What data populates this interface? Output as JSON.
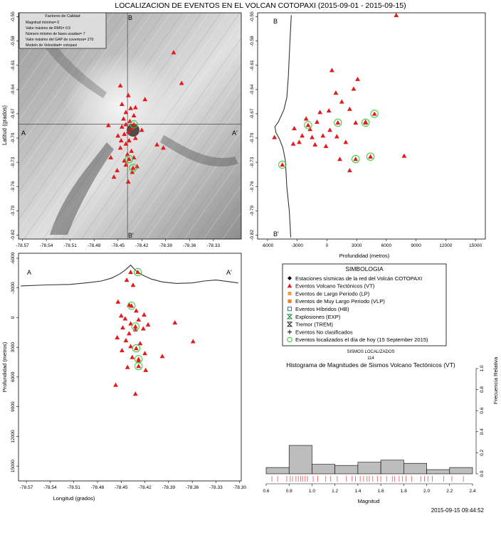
{
  "title": "LOCALIZACION DE EVENTOS EN EL VOLCAN COTOPAXI (2015-09-01 - 2015-09-15)",
  "timestamp": "2015-09-15 09:44:52",
  "quality": {
    "title": "Factores de Calidad",
    "lines": [
      "Magnitud mínima= 0",
      "Valor máximo de RMS= 0.5",
      "Número mínimo de fases usadas= 7",
      "Valor máximo del GAP de covertura= 270",
      "Modelo de Velocidad= cotopaxi"
    ]
  },
  "colors": {
    "vt": "#e41a1c",
    "today": "#33cc33",
    "profile": "#333333"
  },
  "legend": {
    "title": "SIMBOLOGIA",
    "items": [
      {
        "label": "Estaciones sísmicas de la red del Volcán COTOPAXI",
        "icon": "diamond-icon"
      },
      {
        "label": "Eventos Volcano Tectónicos (VT)",
        "icon": "triangle-icon"
      },
      {
        "label": "Eventos de Largo Periodo (LP)",
        "icon": "square-icon"
      },
      {
        "label": "Eventos de Muy Largo Periodo (VLP)",
        "icon": "square-icon"
      },
      {
        "label": "Eventos Híbridos (HB)",
        "icon": "square-outline-icon"
      },
      {
        "label": "Explosiones (EXP)",
        "icon": "hourglass-icon"
      },
      {
        "label": "Tremor (TREM)",
        "icon": "hourglass-outline-icon"
      },
      {
        "label": "Eventos No clasificados",
        "icon": "plus-icon"
      },
      {
        "label": "Eventos localizados el día de hoy (15 September 2015)",
        "icon": "circle-icon"
      }
    ]
  },
  "sismos": {
    "label": "SISMOS LOCALIZADOS",
    "count": "114"
  },
  "chart_data": [
    {
      "type": "scatter",
      "name": "map",
      "xlabel": "",
      "ylabel": "Latitud (grados)",
      "xlim": [
        -78.575,
        -78.295
      ],
      "ylim": [
        -0.825,
        -0.545
      ],
      "xticks": [
        "-78.57",
        "-78.54",
        "-78.51",
        "-78.48",
        "-78.45",
        "-78.42",
        "-78.39",
        "-78.36",
        "-78.33"
      ],
      "xtick_values": [
        -78.57,
        -78.54,
        -78.51,
        -78.48,
        -78.45,
        -78.42,
        -78.39,
        -78.36,
        -78.33
      ],
      "yticks": [
        "-0.55",
        "-0.58",
        "-0.61",
        "-0.64",
        "-0.67",
        "-0.70",
        "-0.73",
        "-0.76",
        "-0.79",
        "-0.82"
      ],
      "ytick_values": [
        -0.55,
        -0.58,
        -0.61,
        -0.64,
        -0.67,
        -0.7,
        -0.73,
        -0.76,
        -0.79,
        -0.82
      ],
      "cross_x": -78.438,
      "cross_y": -0.683,
      "section_labels": {
        "a": "A",
        "a_prime": "A'",
        "b": "B",
        "b_prime": "B'"
      },
      "points": [
        {
          "x": -78.447,
          "y": -0.635
        },
        {
          "x": -78.437,
          "y": -0.647
        },
        {
          "x": -78.445,
          "y": -0.658
        },
        {
          "x": -78.434,
          "y": -0.663
        },
        {
          "x": -78.44,
          "y": -0.668
        },
        {
          "x": -78.43,
          "y": -0.672
        },
        {
          "x": -78.443,
          "y": -0.676
        },
        {
          "x": -78.435,
          "y": -0.679
        },
        {
          "x": -78.44,
          "y": -0.683
        },
        {
          "x": -78.445,
          "y": -0.686
        },
        {
          "x": -78.432,
          "y": -0.688
        },
        {
          "x": -78.437,
          "y": -0.692
        },
        {
          "x": -78.442,
          "y": -0.695
        },
        {
          "x": -78.45,
          "y": -0.697
        },
        {
          "x": -78.428,
          "y": -0.7
        },
        {
          "x": -78.436,
          "y": -0.703
        },
        {
          "x": -78.44,
          "y": -0.707
        },
        {
          "x": -78.447,
          "y": -0.712
        },
        {
          "x": -78.433,
          "y": -0.716
        },
        {
          "x": -78.438,
          "y": -0.72
        },
        {
          "x": -78.43,
          "y": -0.724
        },
        {
          "x": -78.442,
          "y": -0.728
        },
        {
          "x": -78.426,
          "y": -0.735
        },
        {
          "x": -78.451,
          "y": -0.74
        },
        {
          "x": -78.455,
          "y": -0.748
        },
        {
          "x": -78.437,
          "y": -0.754
        },
        {
          "x": -78.416,
          "y": -0.652
        },
        {
          "x": -78.393,
          "y": -0.712
        },
        {
          "x": -78.401,
          "y": -0.708
        },
        {
          "x": -78.37,
          "y": -0.632
        },
        {
          "x": -78.42,
          "y": -0.69
        },
        {
          "x": -78.446,
          "y": -0.703
        },
        {
          "x": -78.44,
          "y": -0.733
        },
        {
          "x": -78.432,
          "y": -0.742
        },
        {
          "x": -78.462,
          "y": -0.684
        },
        {
          "x": -78.38,
          "y": -0.594
        },
        {
          "x": -78.428,
          "y": -0.662
        },
        {
          "x": -78.459,
          "y": -0.724
        }
      ],
      "today": [
        {
          "x": -78.43,
          "y": -0.683
        },
        {
          "x": -78.436,
          "y": -0.726
        },
        {
          "x": -78.431,
          "y": -0.737
        }
      ]
    },
    {
      "type": "scatter",
      "name": "b-section",
      "xlabel": "Profundidad (metros)",
      "ylabel": "",
      "xlim": [
        -7000,
        16000
      ],
      "ylim": [
        -0.825,
        -0.545
      ],
      "xticks": [
        "-6000",
        "-3000",
        "0",
        "3000",
        "6000",
        "9000",
        "12000",
        "15000"
      ],
      "xtick_values": [
        -6000,
        -3000,
        0,
        3000,
        6000,
        9000,
        12000,
        15000
      ],
      "yticks": [
        "-0.55",
        "-0.58",
        "-0.61",
        "-0.64",
        "-0.67",
        "-0.70",
        "-0.73",
        "-0.76",
        "-0.79",
        "-0.82"
      ],
      "ytick_values": [
        -0.55,
        -0.58,
        -0.61,
        -0.64,
        -0.67,
        -0.7,
        -0.73,
        -0.76,
        -0.79,
        -0.82
      ],
      "section_labels": {
        "b": "B",
        "b_prime": "B'"
      },
      "topography": [
        [
          -3600,
          -0.548
        ],
        [
          -3750,
          -0.585
        ],
        [
          -3900,
          -0.625
        ],
        [
          -4050,
          -0.65
        ],
        [
          -4350,
          -0.665
        ],
        [
          -4900,
          -0.68
        ],
        [
          -5250,
          -0.686
        ],
        [
          -5150,
          -0.693
        ],
        [
          -4800,
          -0.701
        ],
        [
          -4450,
          -0.712
        ],
        [
          -4200,
          -0.728
        ],
        [
          -4050,
          -0.76
        ],
        [
          -3800,
          -0.79
        ],
        [
          -3650,
          -0.823
        ]
      ],
      "points": [
        {
          "x": 7000,
          "y": -0.548
        },
        {
          "x": 500,
          "y": -0.616
        },
        {
          "x": 3100,
          "y": -0.627
        },
        {
          "x": 2700,
          "y": -0.639
        },
        {
          "x": 900,
          "y": -0.644
        },
        {
          "x": 1500,
          "y": -0.655
        },
        {
          "x": -700,
          "y": -0.668
        },
        {
          "x": 200,
          "y": -0.666
        },
        {
          "x": 2300,
          "y": -0.664
        },
        {
          "x": -2100,
          "y": -0.676
        },
        {
          "x": -1000,
          "y": -0.68
        },
        {
          "x": 2900,
          "y": -0.681
        },
        {
          "x": 3900,
          "y": -0.68
        },
        {
          "x": -1700,
          "y": -0.689
        },
        {
          "x": 300,
          "y": -0.69
        },
        {
          "x": -3300,
          "y": -0.688
        },
        {
          "x": -2500,
          "y": -0.697
        },
        {
          "x": -1500,
          "y": -0.699
        },
        {
          "x": -400,
          "y": -0.697
        },
        {
          "x": 1000,
          "y": -0.698
        },
        {
          "x": -2800,
          "y": -0.705
        },
        {
          "x": -3400,
          "y": -0.707
        },
        {
          "x": -1200,
          "y": -0.708
        },
        {
          "x": -100,
          "y": -0.71
        },
        {
          "x": 1900,
          "y": -0.705
        },
        {
          "x": -5300,
          "y": -0.699
        },
        {
          "x": 7800,
          "y": -0.722
        },
        {
          "x": 2300,
          "y": -0.74
        },
        {
          "x": 1300,
          "y": -0.726
        }
      ],
      "today": [
        {
          "x": -4500,
          "y": -0.733
        },
        {
          "x": -1900,
          "y": -0.684
        },
        {
          "x": 1100,
          "y": -0.681
        },
        {
          "x": 3900,
          "y": -0.681
        },
        {
          "x": 4800,
          "y": -0.67
        },
        {
          "x": 2900,
          "y": -0.726
        },
        {
          "x": 4400,
          "y": -0.723
        }
      ]
    },
    {
      "type": "scatter",
      "name": "a-section",
      "xlabel": "Longitud (grados)",
      "ylabel": "Profundidad (metros)",
      "xlim": [
        -78.58,
        -78.298
      ],
      "ylim": [
        16500,
        -6500
      ],
      "xticks": [
        "-78.57",
        "-78.54",
        "-78.51",
        "-78.48",
        "-78.45",
        "-78.42",
        "-78.39",
        "-78.36",
        "-78.33",
        "-78.30"
      ],
      "xtick_values": [
        -78.57,
        -78.54,
        -78.51,
        -78.48,
        -78.45,
        -78.42,
        -78.39,
        -78.36,
        -78.33,
        -78.3
      ],
      "yticks": [
        "-6000",
        "-3000",
        "0",
        "3000",
        "6000",
        "9000",
        "12000",
        "15000"
      ],
      "ytick_values": [
        -6000,
        -3000,
        0,
        3000,
        6000,
        9000,
        12000,
        15000
      ],
      "section_labels": {
        "a": "A",
        "a_prime": "A'"
      },
      "topography": [
        [
          -78.577,
          -3200
        ],
        [
          -78.545,
          -3300
        ],
        [
          -78.515,
          -3350
        ],
        [
          -78.495,
          -3500
        ],
        [
          -78.475,
          -3700
        ],
        [
          -78.462,
          -4000
        ],
        [
          -78.452,
          -4400
        ],
        [
          -78.445,
          -4800
        ],
        [
          -78.438,
          -5300
        ],
        [
          -78.431,
          -4700
        ],
        [
          -78.423,
          -4300
        ],
        [
          -78.412,
          -3900
        ],
        [
          -78.398,
          -3600
        ],
        [
          -78.38,
          -3450
        ],
        [
          -78.36,
          -3500
        ],
        [
          -78.345,
          -3700
        ],
        [
          -78.33,
          -3800
        ],
        [
          -78.315,
          -3650
        ],
        [
          -78.302,
          -3500
        ]
      ],
      "points": [
        {
          "x": -78.438,
          "y": -4600
        },
        {
          "x": -78.443,
          "y": -3800
        },
        {
          "x": -78.435,
          "y": -3300
        },
        {
          "x": -78.454,
          "y": -1600
        },
        {
          "x": -78.44,
          "y": -1300
        },
        {
          "x": -78.431,
          "y": -700
        },
        {
          "x": -78.45,
          "y": -200
        },
        {
          "x": -78.445,
          "y": 100
        },
        {
          "x": -78.421,
          "y": -300
        },
        {
          "x": -78.428,
          "y": 200
        },
        {
          "x": -78.438,
          "y": 600
        },
        {
          "x": -78.448,
          "y": 1000
        },
        {
          "x": -78.432,
          "y": 1200
        },
        {
          "x": -78.422,
          "y": 1100
        },
        {
          "x": -78.44,
          "y": 1600
        },
        {
          "x": -78.455,
          "y": 2000
        },
        {
          "x": -78.444,
          "y": 2300
        },
        {
          "x": -78.426,
          "y": 2600
        },
        {
          "x": -78.438,
          "y": 2900
        },
        {
          "x": -78.449,
          "y": 3300
        },
        {
          "x": -78.42,
          "y": 3600
        },
        {
          "x": -78.436,
          "y": 4000
        },
        {
          "x": -78.428,
          "y": 4400
        },
        {
          "x": -78.442,
          "y": 5000
        },
        {
          "x": -78.419,
          "y": 5300
        },
        {
          "x": -78.398,
          "y": 3900
        },
        {
          "x": -78.359,
          "y": 2400
        },
        {
          "x": -78.382,
          "y": 500
        },
        {
          "x": -78.416,
          "y": 700
        },
        {
          "x": -78.457,
          "y": 6800
        },
        {
          "x": -78.432,
          "y": 7700
        }
      ],
      "today": [
        {
          "x": -78.429,
          "y": -4600
        },
        {
          "x": -78.437,
          "y": -1200
        },
        {
          "x": -78.432,
          "y": 900
        },
        {
          "x": -78.431,
          "y": 3100
        },
        {
          "x": -78.428,
          "y": 4200
        },
        {
          "x": -78.428,
          "y": 4900
        }
      ]
    },
    {
      "type": "bar",
      "name": "histogram",
      "title": "Histograma de Magnitudes de Sismos Volcano Tectónicos (VT)",
      "xlabel": "Magnitud",
      "ylabel": "Frecuencia Relativa",
      "xlim": [
        0.6,
        2.4
      ],
      "ylim": [
        0,
        1.0
      ],
      "xticks": [
        "0.6",
        "0.8",
        "1.0",
        "1.2",
        "1.4",
        "1.6",
        "1.8",
        "2.0",
        "2.2",
        "2.4"
      ],
      "xtick_values": [
        0.6,
        0.8,
        1.0,
        1.2,
        1.4,
        1.6,
        1.8,
        2.0,
        2.2,
        2.4
      ],
      "yticks": [
        "0.0",
        "0.2",
        "0.4",
        "0.6",
        "0.8",
        "1.0"
      ],
      "ytick_values": [
        0.0,
        0.2,
        0.4,
        0.6,
        0.8,
        1.0
      ],
      "bins": [
        [
          0.6,
          0.8
        ],
        [
          0.8,
          1.0
        ],
        [
          1.0,
          1.2
        ],
        [
          1.2,
          1.4
        ],
        [
          1.4,
          1.6
        ],
        [
          1.6,
          1.8
        ],
        [
          1.8,
          2.0
        ],
        [
          2.0,
          2.2
        ],
        [
          2.2,
          2.4
        ]
      ],
      "values": [
        0.06,
        0.27,
        0.09,
        0.08,
        0.11,
        0.13,
        0.1,
        0.04,
        0.06
      ],
      "rug": [
        0.65,
        0.7,
        0.78,
        0.81,
        0.83,
        0.86,
        0.88,
        0.9,
        0.92,
        0.94,
        0.96,
        1.01,
        1.05,
        1.12,
        1.16,
        1.22,
        1.3,
        1.35,
        1.38,
        1.42,
        1.45,
        1.48,
        1.5,
        1.53,
        1.57,
        1.6,
        1.65,
        1.7,
        1.72,
        1.76,
        1.79,
        1.82,
        1.87,
        1.95,
        1.98,
        2.01,
        2.05,
        2.15,
        2.22,
        2.32
      ]
    }
  ]
}
